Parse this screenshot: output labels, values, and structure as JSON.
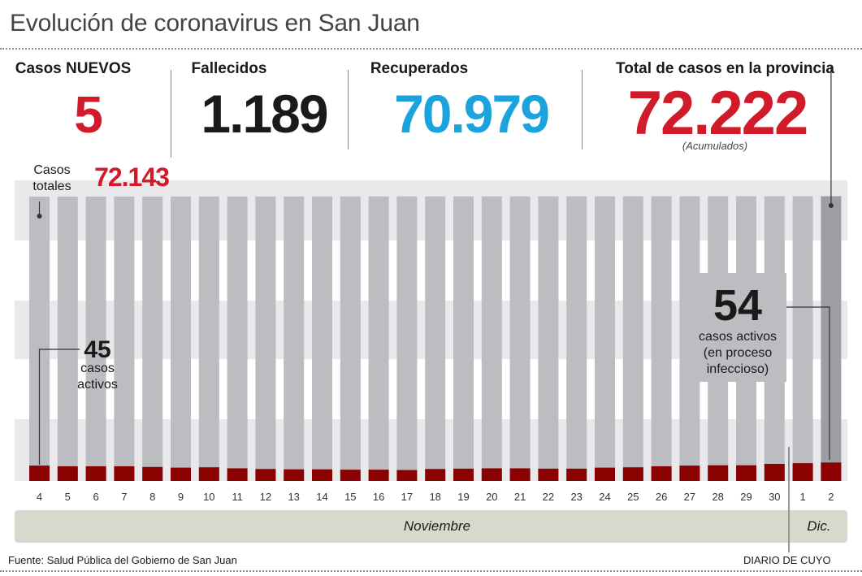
{
  "header": {
    "title": "Evolución de coronavirus en San Juan"
  },
  "stats": {
    "new_cases_label": "Casos NUEVOS",
    "new_cases_value": "5",
    "deaths_label": "Fallecidos",
    "deaths_value": "1.189",
    "recovered_label": "Recuperados",
    "recovered_value": "70.979",
    "total_label": "Total de casos en la provincia",
    "total_value": "72.222",
    "total_note": "(Acumulados)"
  },
  "annotations": {
    "total_cases_line1": "Casos",
    "total_cases_line2": "totales",
    "total_cases_value": "72.143",
    "start_active_value": "45",
    "start_active_line1": "casos",
    "start_active_line2": "activos",
    "end_active_value": "54",
    "end_active_line1": "casos activos",
    "end_active_line2": "(en proceso",
    "end_active_line3": "infeccioso)"
  },
  "months": {
    "november": "Noviembre",
    "december": "Dic."
  },
  "footer": {
    "source": "Fuente: Salud Pública del Gobierno de San Juan",
    "credit": "DIARIO DE CUYO"
  },
  "colors": {
    "bar_total": "#bcbdc0",
    "bar_total_last": "#9d9ea1",
    "bar_active": "#8b0000",
    "red": "#d11a2a",
    "blue": "#1aa3dc",
    "band": "#e9e9ec",
    "month_bar": "#d9d8cc"
  },
  "chart_data": {
    "type": "bar",
    "categories": [
      "4",
      "5",
      "6",
      "7",
      "8",
      "9",
      "10",
      "11",
      "12",
      "13",
      "14",
      "15",
      "16",
      "17",
      "18",
      "19",
      "20",
      "21",
      "22",
      "23",
      "24",
      "25",
      "26",
      "27",
      "28",
      "29",
      "30",
      "1",
      "2"
    ],
    "series": [
      {
        "name": "Casos totales",
        "values": [
          72143,
          72145,
          72148,
          72152,
          72155,
          72158,
          72162,
          72165,
          72168,
          72171,
          72174,
          72177,
          72180,
          72182,
          72185,
          72188,
          72190,
          72193,
          72195,
          72198,
          72200,
          72203,
          72206,
          72209,
          72212,
          72214,
          72216,
          72217,
          72222
        ]
      },
      {
        "name": "casos activos",
        "values": [
          45,
          43,
          43,
          43,
          41,
          39,
          40,
          37,
          35,
          34,
          34,
          33,
          33,
          32,
          35,
          36,
          37,
          37,
          36,
          36,
          39,
          40,
          43,
          45,
          46,
          46,
          50,
          52,
          54
        ]
      }
    ]
  }
}
